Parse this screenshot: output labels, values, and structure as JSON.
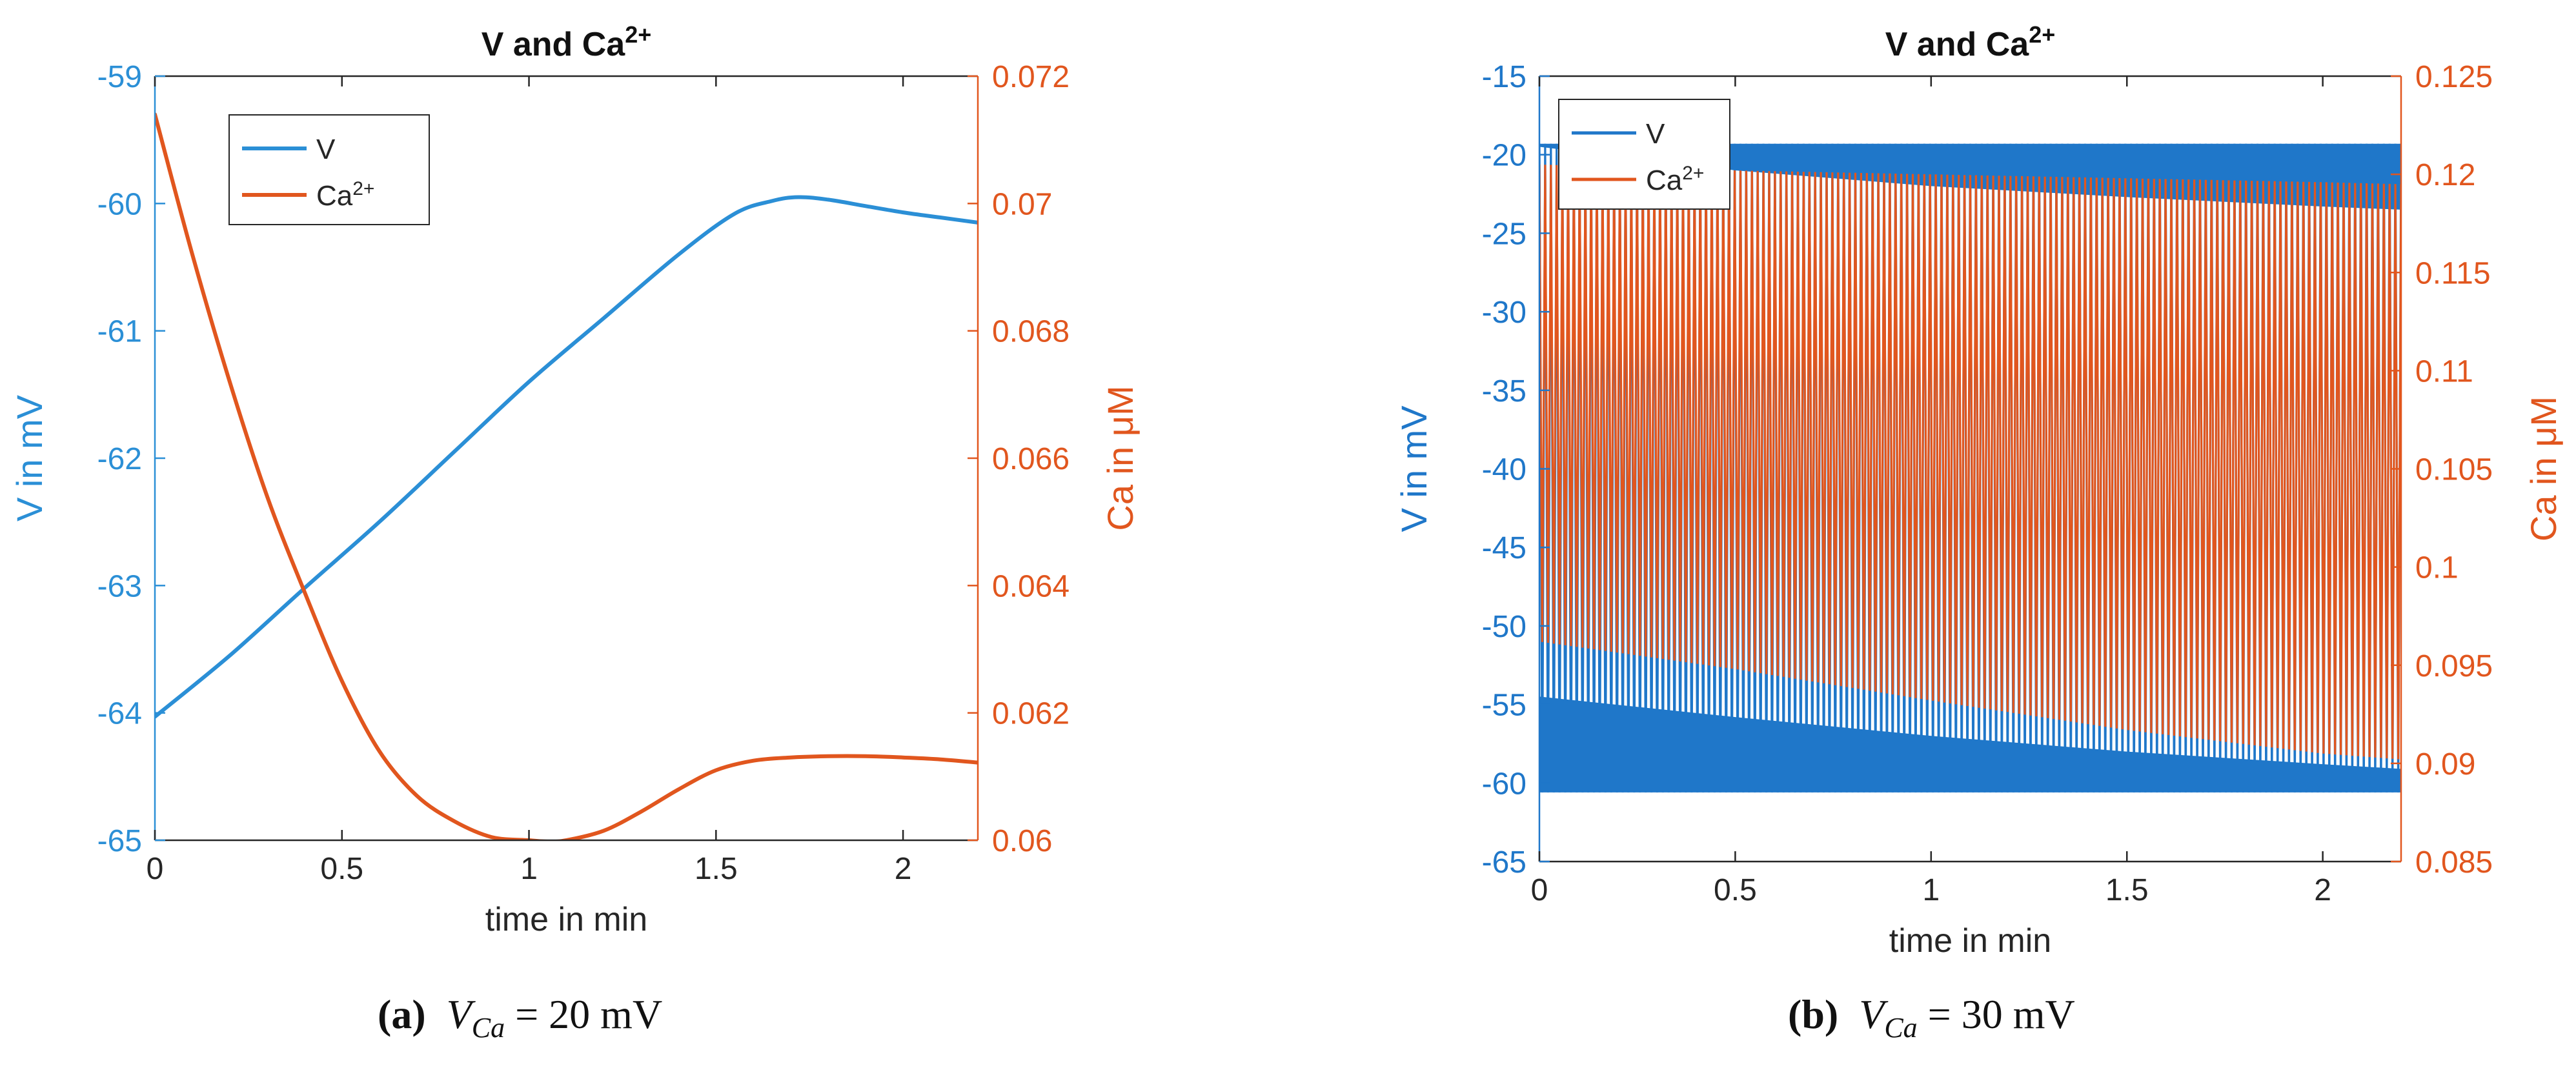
{
  "figure_captions": [
    {
      "label": "(a)",
      "var_name": "V",
      "var_sub": "Ca",
      "value_text": "= 20 mV"
    },
    {
      "label": "(b)",
      "var_name": "V",
      "var_sub": "Ca",
      "value_text": "= 30 mV"
    }
  ],
  "chart_data": [
    {
      "type": "line",
      "title": "V and Ca",
      "title_sup": "2+",
      "xlabel": "time in min",
      "ylabel_left": "V in mV",
      "ylabel_right": "Ca in μM",
      "xlim": [
        0,
        2.2
      ],
      "xticks": [
        0,
        0.5,
        1,
        1.5,
        2
      ],
      "xtick_labels": [
        "0",
        "0.5",
        "1",
        "1.5",
        "2"
      ],
      "ylim_left": [
        -65,
        -59
      ],
      "yticks_left": [
        -65,
        -64,
        -63,
        -62,
        -61,
        -60,
        -59
      ],
      "ytick_labels_left": [
        "-65",
        "-64",
        "-63",
        "-62",
        "-61",
        "-60",
        "-59"
      ],
      "ylim_right": [
        0.06,
        0.072
      ],
      "yticks_right": [
        0.06,
        0.062,
        0.064,
        0.066,
        0.068,
        0.07,
        0.072
      ],
      "ytick_labels_right": [
        "0.06",
        "0.062",
        "0.064",
        "0.066",
        "0.068",
        "0.07",
        "0.072"
      ],
      "legend": {
        "position": "top-left",
        "entries": [
          {
            "label": "V",
            "sup": ""
          },
          {
            "label": "Ca",
            "sup": "2+"
          }
        ]
      },
      "colors": {
        "left": "#2b8fd6",
        "right": "#e1561e"
      },
      "series": [
        {
          "name": "V",
          "axis": "left",
          "color": "#2b8fd6",
          "x": [
            0,
            0.2,
            0.4,
            0.6,
            0.8,
            1.0,
            1.2,
            1.4,
            1.55,
            1.65,
            1.72,
            1.8,
            1.9,
            2.0,
            2.1,
            2.2
          ],
          "y": [
            -64.03,
            -63.55,
            -63.02,
            -62.5,
            -61.95,
            -61.4,
            -60.9,
            -60.4,
            -60.08,
            -59.98,
            -59.95,
            -59.97,
            -60.02,
            -60.07,
            -60.11,
            -60.15
          ]
        },
        {
          "name": "Ca2+",
          "axis": "right",
          "color": "#e1561e",
          "x": [
            0,
            0.1,
            0.2,
            0.3,
            0.4,
            0.5,
            0.6,
            0.7,
            0.8,
            0.9,
            1.0,
            1.05,
            1.1,
            1.2,
            1.3,
            1.4,
            1.5,
            1.6,
            1.7,
            1.8,
            1.9,
            2.0,
            2.1,
            2.2
          ],
          "y": [
            0.0714,
            0.0692,
            0.0672,
            0.0654,
            0.0639,
            0.0625,
            0.0614,
            0.0607,
            0.0603,
            0.06005,
            0.06,
            0.05998,
            0.06,
            0.06015,
            0.06045,
            0.0608,
            0.0611,
            0.06125,
            0.0613,
            0.06132,
            0.06132,
            0.0613,
            0.06127,
            0.06122
          ]
        }
      ]
    },
    {
      "type": "line",
      "title": "V and Ca",
      "title_sup": "2+",
      "xlabel": "time in min",
      "ylabel_left": "V in mV",
      "ylabel_right": "Ca in μM",
      "xlim": [
        0,
        2.2
      ],
      "xticks": [
        0,
        0.5,
        1,
        1.5,
        2
      ],
      "xtick_labels": [
        "0",
        "0.5",
        "1",
        "1.5",
        "2"
      ],
      "ylim_left": [
        -65,
        -15
      ],
      "yticks_left": [
        -65,
        -60,
        -55,
        -50,
        -45,
        -40,
        -35,
        -30,
        -25,
        -20,
        -15
      ],
      "ytick_labels_left": [
        "-65",
        "-60",
        "-55",
        "-50",
        "-45",
        "-40",
        "-35",
        "-30",
        "-25",
        "-20",
        "-15"
      ],
      "ylim_right": [
        0.085,
        0.125
      ],
      "yticks_right": [
        0.085,
        0.09,
        0.095,
        0.1,
        0.105,
        0.11,
        0.115,
        0.12,
        0.125
      ],
      "ytick_labels_right": [
        "0.085",
        "0.09",
        "0.095",
        "0.1",
        "0.105",
        "0.11",
        "0.115",
        "0.12",
        "0.125"
      ],
      "legend": {
        "position": "top-left",
        "entries": [
          {
            "label": "V",
            "sup": ""
          },
          {
            "label": "Ca",
            "sup": "2+"
          }
        ]
      },
      "colors": {
        "left": "#1f77c9",
        "right": "#e1561e"
      },
      "oscillation": {
        "cycles": 150
      },
      "series": [
        {
          "name": "V",
          "axis": "left",
          "color": "#1f77c9",
          "kind": "oscillation",
          "x": [
            0,
            0.5,
            1.0,
            1.5,
            2.0,
            2.2
          ],
          "upper": [
            -19.3,
            -19.3,
            -19.3,
            -19.3,
            -19.3,
            -19.3
          ],
          "lower": [
            -60.6,
            -60.6,
            -60.6,
            -60.6,
            -60.6,
            -60.6
          ],
          "upper_band": [
            -19.5,
            -21.0,
            -22.0,
            -22.7,
            -23.3,
            -23.5
          ],
          "lower_band": [
            -54.5,
            -55.8,
            -57.0,
            -58.0,
            -58.8,
            -59.1
          ]
        },
        {
          "name": "Ca2+",
          "axis": "right",
          "color": "#e1561e",
          "kind": "oscillation",
          "x": [
            0,
            0.5,
            1.0,
            1.5,
            2.0,
            2.2
          ],
          "upper": [
            0.1205,
            0.1202,
            0.12,
            0.1198,
            0.1196,
            0.1195
          ],
          "lower": [
            0.0962,
            0.0948,
            0.0932,
            0.0917,
            0.0905,
            0.0902
          ]
        }
      ]
    }
  ]
}
